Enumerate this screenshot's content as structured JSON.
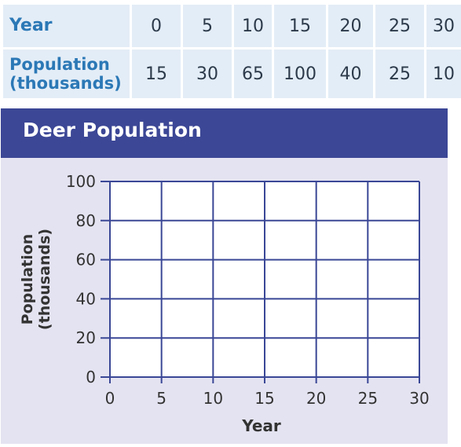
{
  "table": {
    "year_header": "Year",
    "population_header_line1": "Population",
    "population_header_line2": "(thousands)",
    "years": [
      "0",
      "5",
      "10",
      "15",
      "20",
      "25",
      "30"
    ],
    "population": [
      "15",
      "30",
      "65",
      "100",
      "40",
      "25",
      "10"
    ]
  },
  "chart_data": {
    "type": "line",
    "title": "Deer Population",
    "xlabel": "Year",
    "ylabel_line1": "Population",
    "ylabel_line2": "(thousands)",
    "xlim": [
      0,
      30
    ],
    "ylim": [
      0,
      100
    ],
    "x_ticks": [
      0,
      5,
      10,
      15,
      20,
      25,
      30
    ],
    "y_ticks": [
      0,
      20,
      40,
      60,
      80,
      100
    ],
    "x": [],
    "series": [],
    "grid": true,
    "colors": {
      "banner": "#3c4796",
      "grid": "#3a4796",
      "plot_bg": "#ffffff",
      "card_bg": "#e4e3f1",
      "header_text": "#2b78b6",
      "table_bg": "#e3edf7"
    }
  }
}
